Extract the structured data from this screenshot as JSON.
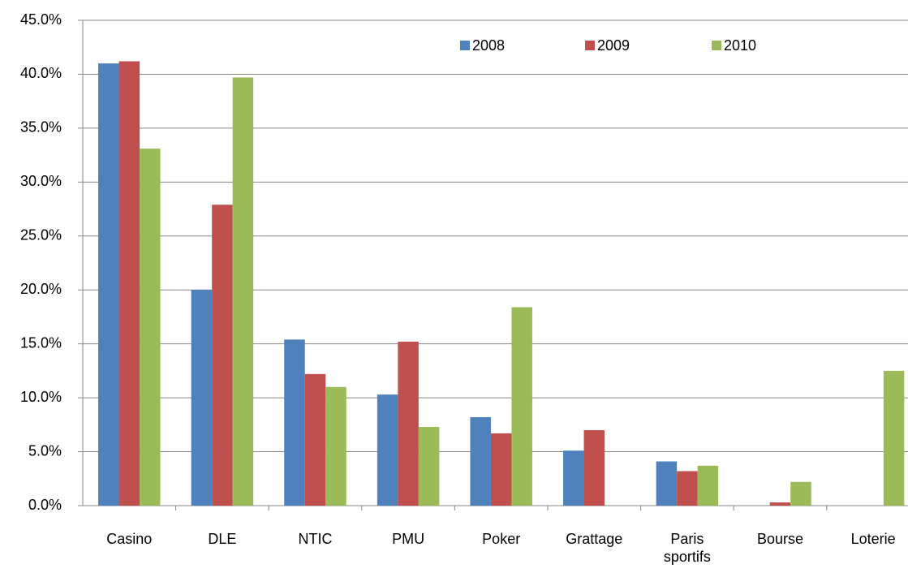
{
  "chart_data": {
    "type": "bar",
    "categories": [
      "Casino",
      "DLE",
      "NTIC",
      "PMU",
      "Poker",
      "Grattage",
      "Paris sportifs",
      "Bourse",
      "Loterie"
    ],
    "series": [
      {
        "name": "2008",
        "color": "#4f81bd",
        "values": [
          41.0,
          20.0,
          15.4,
          10.3,
          8.2,
          5.1,
          4.1,
          null,
          null
        ]
      },
      {
        "name": "2009",
        "color": "#c0504d",
        "values": [
          41.2,
          27.9,
          12.2,
          15.2,
          6.7,
          7.0,
          3.2,
          0.3,
          null
        ]
      },
      {
        "name": "2010",
        "color": "#9bbb59",
        "values": [
          33.1,
          39.7,
          11.0,
          7.3,
          18.4,
          null,
          3.7,
          2.2,
          12.5
        ]
      }
    ],
    "ylim": [
      0,
      45
    ],
    "yticks": [
      {
        "value": 0,
        "label": "0.0%"
      },
      {
        "value": 5,
        "label": "5.0%"
      },
      {
        "value": 10,
        "label": "10.0%"
      },
      {
        "value": 15,
        "label": "15.0%"
      },
      {
        "value": 20,
        "label": "20.0%"
      },
      {
        "value": 25,
        "label": "25.0%"
      },
      {
        "value": 30,
        "label": "30.0%"
      },
      {
        "value": 35,
        "label": "35.0%"
      },
      {
        "value": 40,
        "label": "40.0%"
      },
      {
        "value": 45,
        "label": "45.0%"
      }
    ],
    "grid": true,
    "legend": "top"
  }
}
